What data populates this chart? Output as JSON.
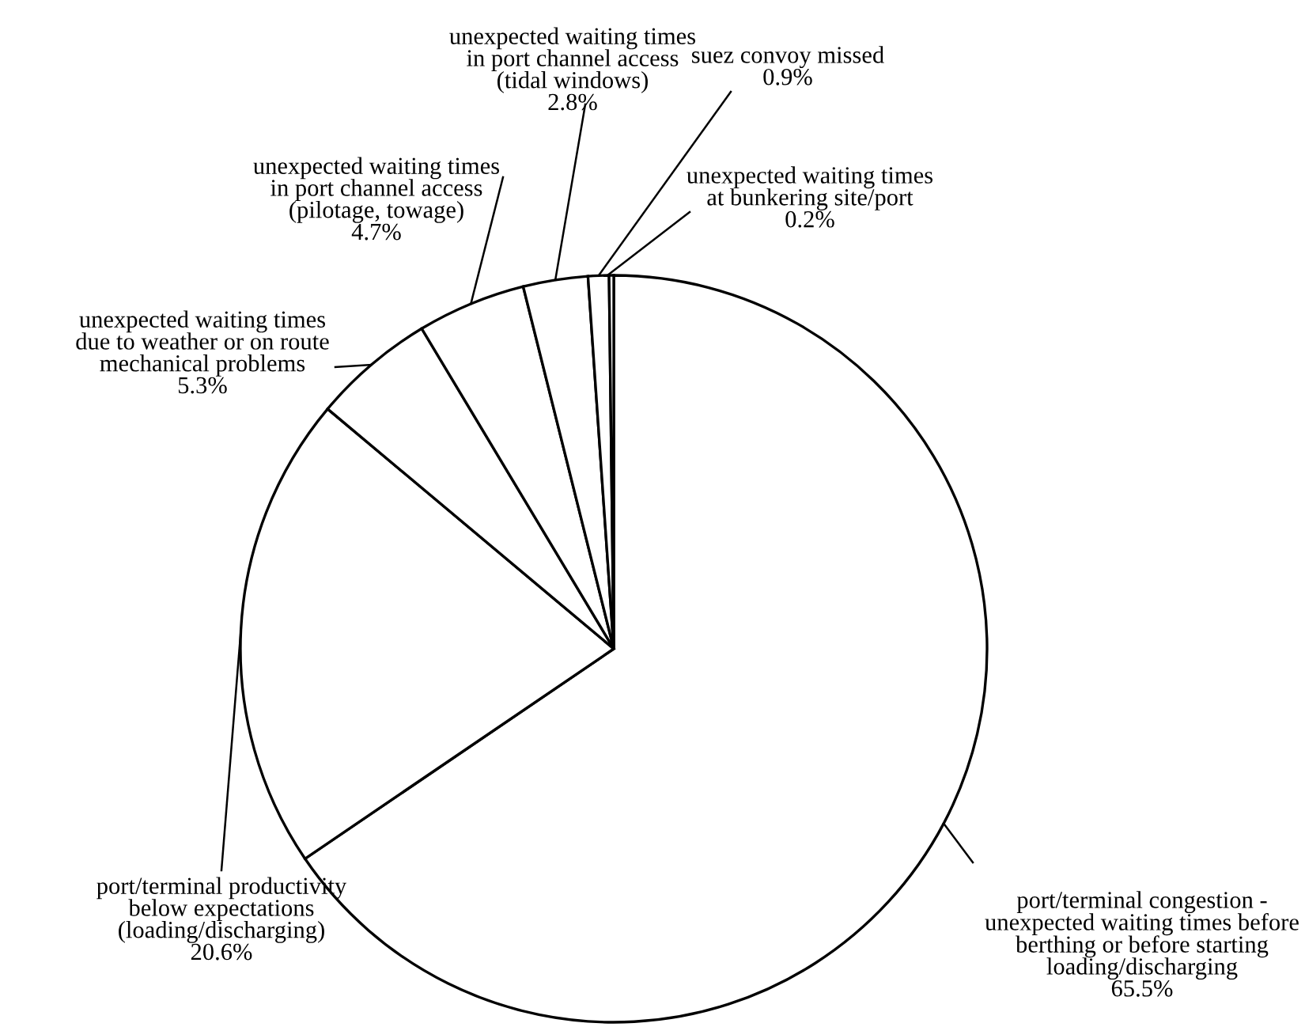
{
  "chart_data": {
    "type": "pie",
    "categories": [
      "port/terminal congestion -\nunexpected waiting times before\nberthing or before starting\nloading/discharging",
      "port/terminal productivity\nbelow expectations\n(loading/discharging)",
      "unexpected waiting times\ndue to weather or on route\nmechanical problems",
      "unexpected waiting times\nin port channel access\n(pilotage, towage)",
      "unexpected waiting times\nin port channel access\n(tidal windows)",
      "suez convoy missed",
      "unexpected waiting times\nat bunkering site/port"
    ],
    "values": [
      65.5,
      20.6,
      5.3,
      4.7,
      2.8,
      0.9,
      0.2
    ],
    "colors": [
      "#ffffff",
      "#ffffff",
      "#ffffff",
      "#ffffff",
      "#ffffff",
      "#ffffff",
      "#ffffff"
    ],
    "value_labels": [
      "65.5%",
      "20.6%",
      "5.3%",
      "4.7%",
      "2.8%",
      "0.9%",
      "0.2%"
    ]
  }
}
